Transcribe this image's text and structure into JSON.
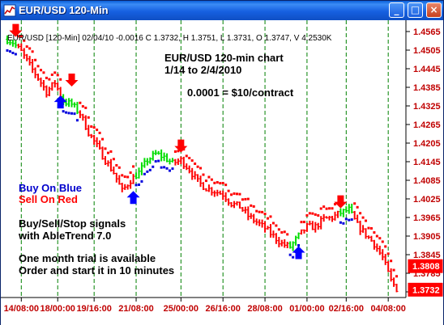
{
  "window": {
    "title": "EUR/USD 120-Min",
    "buttons": {
      "minimize": "_",
      "maximize": "□",
      "close": "×"
    }
  },
  "chart": {
    "header": "EUR/USD [120-Min] 02/04/10 -0.0016 C 1.3732, H 1.3751, L 1.3731, O 1.3747, V 4.2530K",
    "title_lines": [
      "EUR/USD 120-min chart",
      "1/14 to 2/4/2010"
    ],
    "pip_note": "0.0001 = $10/contract",
    "legend": {
      "buy": "Buy On Blue",
      "sell": "Sell On Red",
      "signals_line1": "Buy/Sell/Stop signals",
      "signals_line2": "with AbleTrend 7.0",
      "trial_line1": "One month trial is available",
      "trial_line2": "Order and start it in 10 minutes"
    },
    "colors": {
      "up": "#00dd00",
      "down": "#ff0000",
      "neutral": "#0000dd",
      "buy_arrow": "#0000ff",
      "sell_arrow": "#ff0000",
      "grid": "#008000",
      "axis_text": "#c00000"
    }
  },
  "chart_data": {
    "type": "bar",
    "style": "OHLC price bars with stop dots and signal arrows",
    "symbol": "EUR/USD",
    "interval": "120-Min",
    "y_ticks": [
      1.4565,
      1.4505,
      1.4445,
      1.4385,
      1.4325,
      1.4265,
      1.4205,
      1.4145,
      1.4085,
      1.4025,
      1.3965,
      1.3905,
      1.3845,
      1.3785,
      1.3725
    ],
    "y_tick_labels": [
      "1.4565",
      "1.4505",
      "1.4445",
      "1.4385",
      "1.4325",
      "1.4265",
      "1.4205",
      "1.4145",
      "1.4085",
      "1.4025",
      "1.3965",
      "1.3905",
      "1.3845",
      "1.3785",
      "1.3725"
    ],
    "ylim": [
      1.3725,
      1.4565
    ],
    "x_ticks": [
      {
        "label": "14/08:00",
        "x": 5
      },
      {
        "label": "18/00:00",
        "x": 18
      },
      {
        "label": "19/16:00",
        "x": 31
      },
      {
        "label": "21/08:00",
        "x": 46
      },
      {
        "label": "25/00:00",
        "x": 62
      },
      {
        "label": "26/16:00",
        "x": 77
      },
      {
        "label": "28/08:00",
        "x": 92
      },
      {
        "label": "01/00:00",
        "x": 107
      },
      {
        "label": "02/16:00",
        "x": 121
      },
      {
        "label": "04/08:00",
        "x": 136
      }
    ],
    "xlim": [
      0,
      140
    ],
    "price_tags": [
      {
        "value": "1.3808",
        "price": 1.3808
      },
      {
        "value": "1.3732",
        "price": 1.3732
      }
    ],
    "anchors": [
      [
        0,
        1.454
      ],
      [
        2,
        1.453
      ],
      [
        5,
        1.45
      ],
      [
        8,
        1.4455
      ],
      [
        11,
        1.4415
      ],
      [
        14,
        1.437
      ],
      [
        17,
        1.44
      ],
      [
        20,
        1.434
      ],
      [
        23,
        1.433
      ],
      [
        26,
        1.43
      ],
      [
        29,
        1.424
      ],
      [
        32,
        1.4195
      ],
      [
        35,
        1.415
      ],
      [
        38,
        1.411
      ],
      [
        41,
        1.405
      ],
      [
        44,
        1.4085
      ],
      [
        47,
        1.411
      ],
      [
        50,
        1.415
      ],
      [
        53,
        1.417
      ],
      [
        56,
        1.416
      ],
      [
        59,
        1.414
      ],
      [
        62,
        1.415
      ],
      [
        65,
        1.412
      ],
      [
        68,
        1.408
      ],
      [
        71,
        1.406
      ],
      [
        74,
        1.405
      ],
      [
        77,
        1.404
      ],
      [
        80,
        1.401
      ],
      [
        83,
        1.4
      ],
      [
        86,
        1.397
      ],
      [
        89,
        1.395
      ],
      [
        92,
        1.393
      ],
      [
        95,
        1.3905
      ],
      [
        98,
        1.388
      ],
      [
        101,
        1.387
      ],
      [
        104,
        1.3905
      ],
      [
        107,
        1.3935
      ],
      [
        110,
        1.3935
      ],
      [
        113,
        1.396
      ],
      [
        116,
        1.3965
      ],
      [
        119,
        1.398
      ],
      [
        122,
        1.399
      ],
      [
        125,
        1.394
      ],
      [
        128,
        1.391
      ],
      [
        131,
        1.388
      ],
      [
        134,
        1.3835
      ],
      [
        137,
        1.376
      ],
      [
        139,
        1.3735
      ]
    ],
    "trend_segments": [
      {
        "from": 0,
        "to": 4,
        "trend": "up"
      },
      {
        "from": 4,
        "to": 20,
        "trend": "down"
      },
      {
        "from": 20,
        "to": 26,
        "trend": "up"
      },
      {
        "from": 26,
        "to": 46,
        "trend": "down"
      },
      {
        "from": 46,
        "to": 60,
        "trend": "up"
      },
      {
        "from": 60,
        "to": 101,
        "trend": "down"
      },
      {
        "from": 101,
        "to": 105,
        "trend": "up"
      },
      {
        "from": 105,
        "to": 119,
        "trend": "down"
      },
      {
        "from": 119,
        "to": 124,
        "trend": "up"
      },
      {
        "from": 124,
        "to": 139,
        "trend": "down"
      }
    ],
    "signals": [
      {
        "type": "sell",
        "x": 3,
        "price": 1.4558
      },
      {
        "type": "buy",
        "x": 19,
        "price": 1.4348
      },
      {
        "type": "sell",
        "x": 23,
        "price": 1.4398
      },
      {
        "type": "buy",
        "x": 45,
        "price": 1.404
      },
      {
        "type": "sell",
        "x": 62,
        "price": 1.4185
      },
      {
        "type": "buy",
        "x": 104,
        "price": 1.3862
      },
      {
        "type": "sell",
        "x": 119,
        "price": 1.4005
      }
    ]
  }
}
